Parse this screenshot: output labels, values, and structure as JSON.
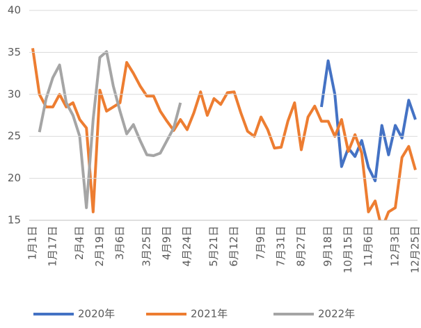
{
  "chart_data": {
    "type": "line",
    "categories": [
      "1月1日",
      null,
      null,
      "1月17日",
      null,
      null,
      null,
      "2月4日",
      null,
      null,
      "2月19日",
      null,
      null,
      "3月6日",
      null,
      null,
      null,
      "3月25日",
      null,
      null,
      "4月9日",
      null,
      null,
      "4月24日",
      null,
      null,
      null,
      "5月21日",
      null,
      null,
      "6月12日",
      null,
      null,
      null,
      "7月9日",
      null,
      null,
      "7月31日",
      null,
      null,
      "8月27日",
      null,
      null,
      null,
      "9月18日",
      null,
      null,
      "10月15日",
      null,
      null,
      "11月6日",
      null,
      null,
      null,
      "12月3日",
      null,
      null,
      "12月25日"
    ],
    "series": [
      {
        "name": "2020年",
        "color": "#4472c4",
        "values": [
          null,
          null,
          null,
          null,
          null,
          null,
          null,
          null,
          null,
          null,
          null,
          null,
          null,
          null,
          null,
          null,
          null,
          null,
          null,
          null,
          null,
          null,
          null,
          null,
          null,
          null,
          null,
          null,
          null,
          null,
          null,
          null,
          null,
          null,
          null,
          null,
          null,
          null,
          null,
          null,
          null,
          null,
          null,
          28.5,
          34,
          30,
          21.4,
          23.6,
          22.6,
          24.5,
          21.3,
          19.7,
          26.3,
          22.8,
          26.3,
          24.8,
          29.3,
          27
        ]
      },
      {
        "name": "2021年",
        "color": "#ed7d31",
        "values": [
          35.5,
          30,
          28.5,
          28.5,
          30,
          28.5,
          29,
          27,
          26,
          16,
          30.5,
          28,
          28.5,
          29,
          33.8,
          32.5,
          31,
          29.8,
          29.8,
          28,
          26.8,
          25.7,
          27,
          25.8,
          27.8,
          30.3,
          27.5,
          29.5,
          28.8,
          30.2,
          30.3,
          27.8,
          25.6,
          25,
          27.3,
          25.8,
          23.6,
          23.7,
          26.8,
          29,
          23.4,
          27.3,
          28.6,
          26.8,
          26.8,
          25,
          27,
          23.2,
          25.2,
          23,
          16,
          17.3,
          14,
          16,
          16.5,
          22.5,
          23.8,
          21
        ]
      },
      {
        "name": "2022年",
        "color": "#a5a5a5",
        "values": [
          null,
          25.5,
          29.5,
          32,
          33.5,
          29,
          27.5,
          25,
          16.5,
          27,
          34.4,
          35.1,
          31,
          28,
          25.3,
          26.4,
          24.5,
          22.8,
          22.7,
          23,
          24.5,
          26,
          29,
          null,
          null,
          null,
          null,
          null,
          null,
          null,
          null,
          null,
          null,
          null,
          null,
          null,
          null,
          null,
          null,
          null,
          null,
          null,
          null,
          null,
          null,
          null,
          null,
          null,
          null,
          null,
          null,
          null,
          null,
          null,
          null,
          null,
          null,
          null
        ]
      }
    ],
    "ylim": [
      15,
      40
    ],
    "yticks": [
      15,
      20,
      25,
      30,
      35,
      40
    ],
    "grid": true,
    "legend": "bottom"
  }
}
